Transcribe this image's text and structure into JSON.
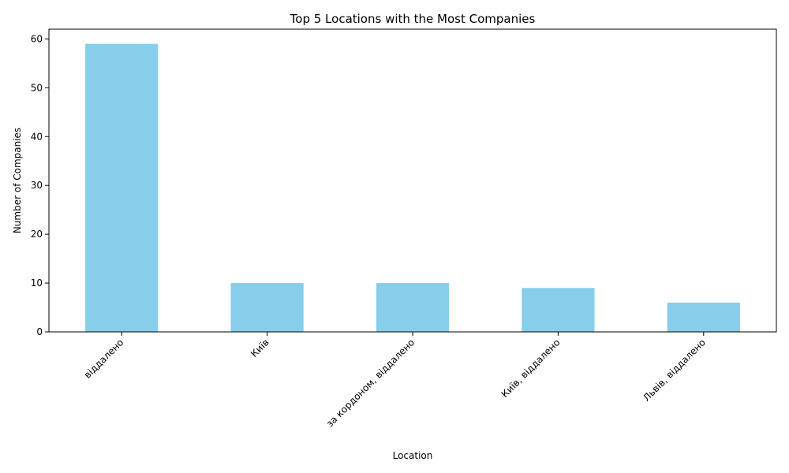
{
  "chart_data": {
    "type": "bar",
    "title": "Top 5 Locations with the Most Companies",
    "xlabel": "Location",
    "ylabel": "Number of Companies",
    "categories": [
      "віддалено",
      "Київ",
      "за кордоном, віддалено",
      "Київ, віддалено",
      "Львів, віддалено"
    ],
    "values": [
      59,
      10,
      10,
      9,
      6
    ],
    "ylim": [
      0,
      62
    ],
    "yticks": [
      0,
      10,
      20,
      30,
      40,
      50,
      60
    ],
    "bar_color": "#87CEEB",
    "grid": false,
    "legend": "none"
  }
}
